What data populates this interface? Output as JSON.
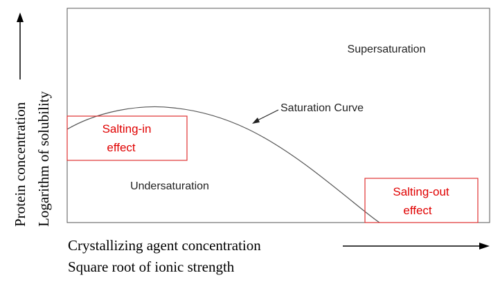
{
  "y_axis": {
    "label_line1": "Protein concentration",
    "label_line2": "Logarithm of solubility"
  },
  "x_axis": {
    "label_line1": "Crystallizing agent concentration",
    "label_line2": "Square root of ionic strength"
  },
  "regions": {
    "upper": "Supersaturation",
    "lower": "Undersaturation"
  },
  "curve": {
    "label": "Saturation Curve"
  },
  "callouts": [
    {
      "line1": "Salting-in",
      "line2": "effect"
    },
    {
      "line1": "Salting-out",
      "line2": "effect"
    }
  ]
}
